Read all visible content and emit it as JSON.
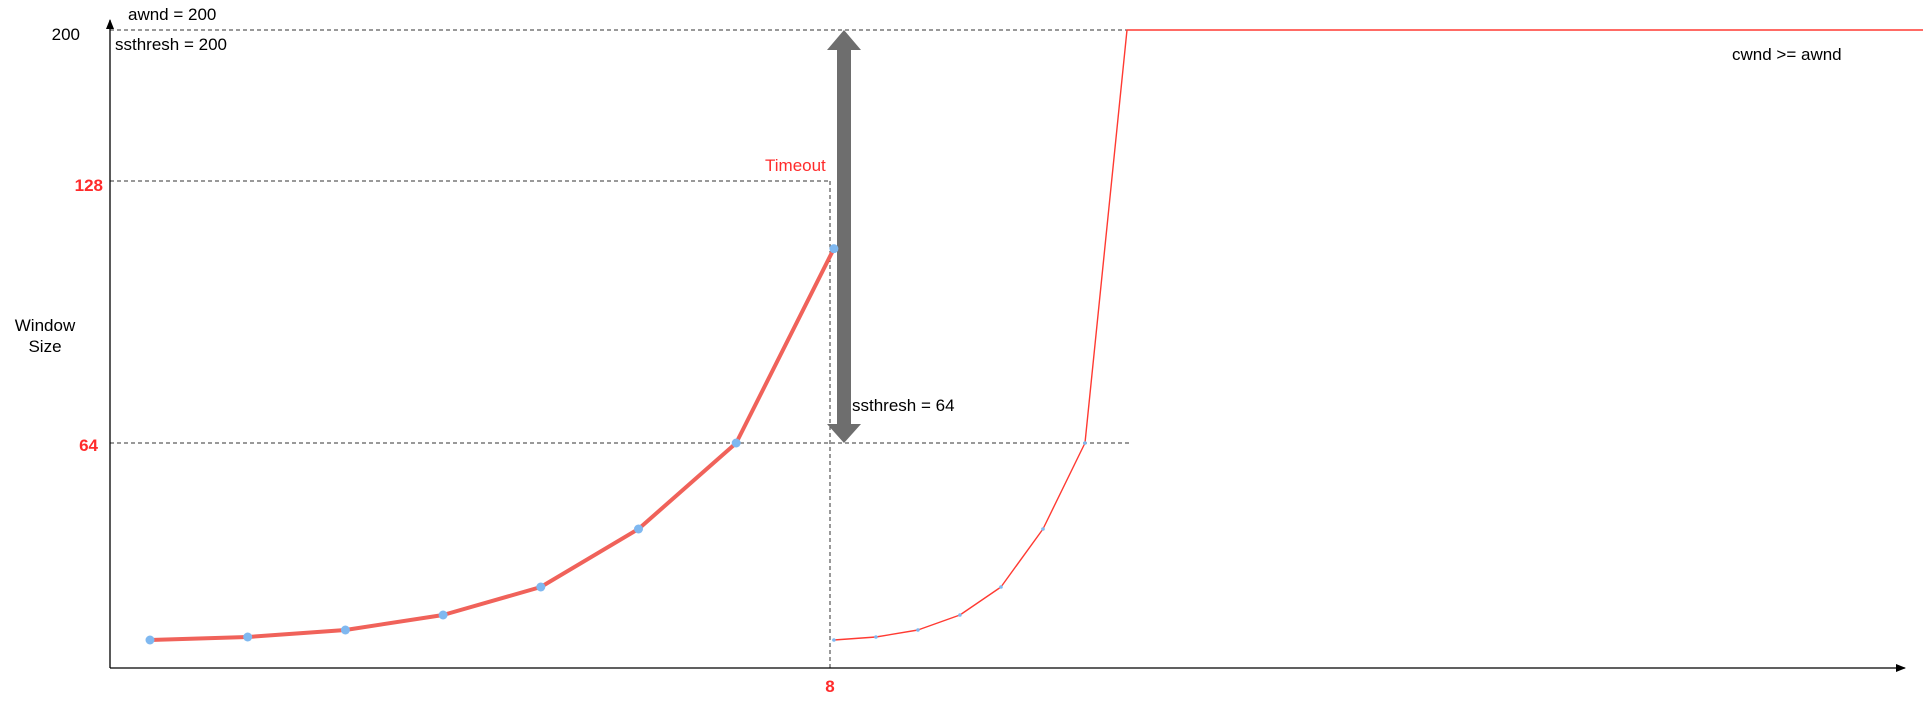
{
  "labels": {
    "awnd": "awnd = 200",
    "ssthresh_initial": "ssthresh = 200",
    "ssthresh_new": "ssthresh = 64",
    "timeout": "Timeout",
    "cwnd_cap": "cwnd >= awnd",
    "y_axis_line1": "Window",
    "y_axis_line2": "Size"
  },
  "y_ticks": [
    {
      "label": "200",
      "value": 200,
      "color": "#000000"
    },
    {
      "label": "128",
      "value": 128,
      "color": "#ff0000"
    },
    {
      "label": "64",
      "value": 64,
      "color": "#ff0000"
    }
  ],
  "x_ticks": [
    {
      "label": "8",
      "value": 8,
      "color": "#ff0000"
    }
  ],
  "colors": {
    "curve": "#f0625a",
    "marker": "#7fb8f0",
    "arrow": "#6e6e6e",
    "accent": "#ff0000"
  },
  "chart_data": {
    "type": "line",
    "xlabel": "",
    "ylabel": "Window Size",
    "ylim": [
      0,
      200
    ],
    "series": [
      {
        "x": [
          1,
          2,
          3,
          4,
          5,
          6,
          7,
          8
        ],
        "y": [
          1,
          2,
          4,
          8,
          16,
          32,
          64,
          128
        ]
      },
      {
        "x": [
          8,
          8.43,
          8.86,
          9.29,
          9.71,
          10.14,
          10.57,
          11,
          17.1,
          29.6
        ],
        "y": [
          1,
          2,
          4,
          8,
          16,
          32,
          64,
          200,
          200,
          200
        ]
      }
    ]
  }
}
